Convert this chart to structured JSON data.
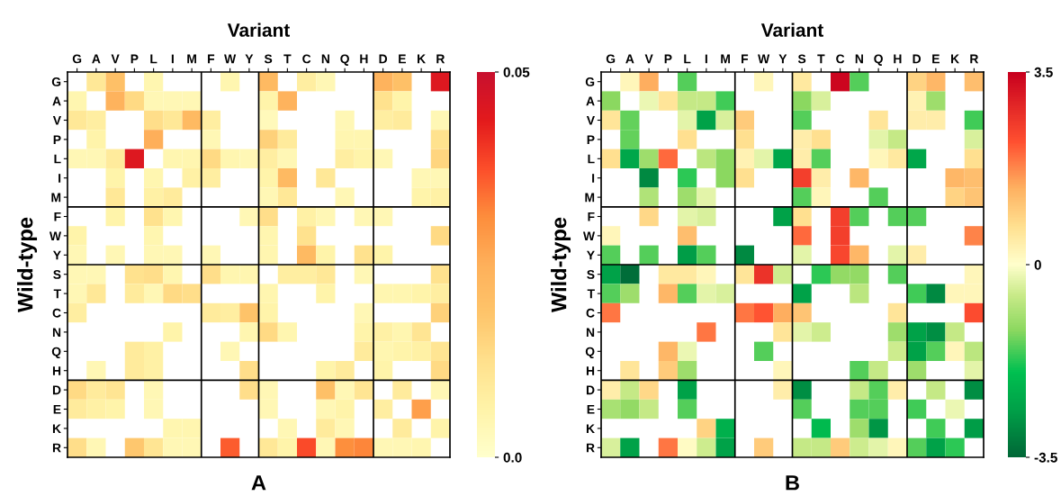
{
  "chart_data": [
    {
      "type": "heatmap",
      "xlabel": "Variant",
      "ylabel": "Wild-type",
      "annotations": [
        "A"
      ],
      "categories": [
        "G",
        "A",
        "V",
        "P",
        "L",
        "I",
        "M",
        "F",
        "W",
        "Y",
        "S",
        "T",
        "C",
        "N",
        "Q",
        "H",
        "D",
        "E",
        "K",
        "R"
      ],
      "y_categories": [
        "G",
        "A",
        "V",
        "P",
        "L",
        "I",
        "M",
        "F",
        "W",
        "Y",
        "S",
        "T",
        "C",
        "N",
        "Q",
        "H",
        "D",
        "E",
        "K",
        "R"
      ],
      "clim": [
        0,
        0.05
      ],
      "cticks": [
        {
          "value": 0,
          "label": "0.0"
        },
        0.05
      ],
      "cells": [
        [
          null,
          0.01,
          0.02,
          null,
          0.005,
          null,
          null,
          null,
          0.005,
          null,
          0.022,
          null,
          0.008,
          0.004,
          null,
          null,
          0.024,
          0.02,
          null,
          0.045
        ],
        [
          0.005,
          null,
          0.024,
          0.014,
          0.004,
          0.004,
          0.004,
          null,
          null,
          null,
          0.006,
          0.024,
          null,
          null,
          null,
          null,
          0.012,
          0.006,
          null,
          null
        ],
        [
          0.01,
          0.008,
          null,
          null,
          0.013,
          0.01,
          0.022,
          0.008,
          null,
          null,
          0.003,
          null,
          null,
          null,
          0.004,
          null,
          0.008,
          0.009,
          null,
          0.004
        ],
        [
          null,
          0.006,
          null,
          null,
          0.025,
          null,
          null,
          0.004,
          null,
          null,
          0.016,
          0.009,
          null,
          null,
          0.005,
          0.005,
          null,
          null,
          null,
          0.012
        ],
        [
          0.004,
          0.004,
          0.009,
          0.045,
          null,
          0.005,
          0.005,
          0.014,
          0.005,
          0.004,
          0.008,
          0.004,
          null,
          null,
          0.008,
          0.006,
          0.004,
          null,
          null,
          0.015
        ],
        [
          null,
          null,
          0.006,
          null,
          0.005,
          null,
          0.007,
          0.008,
          null,
          null,
          0.006,
          0.022,
          null,
          0.01,
          null,
          null,
          null,
          null,
          0.004,
          0.004
        ],
        [
          null,
          null,
          0.01,
          null,
          0.007,
          0.009,
          null,
          null,
          null,
          null,
          0.004,
          0.01,
          null,
          null,
          0.004,
          null,
          null,
          null,
          0.006,
          0.007
        ],
        [
          null,
          null,
          0.006,
          null,
          0.012,
          0.005,
          null,
          null,
          null,
          0.004,
          0.013,
          null,
          0.007,
          0.004,
          null,
          0.004,
          0.004,
          null,
          null,
          null
        ],
        [
          0.006,
          null,
          null,
          null,
          0.005,
          null,
          null,
          null,
          null,
          null,
          0.005,
          null,
          0.012,
          null,
          null,
          null,
          null,
          null,
          null,
          0.014
        ],
        [
          0.004,
          null,
          0.004,
          null,
          0.004,
          0.004,
          null,
          0.004,
          null,
          null,
          0.005,
          null,
          0.022,
          0.006,
          null,
          0.012,
          0.006,
          null,
          null,
          null
        ],
        [
          0.004,
          0.004,
          null,
          0.012,
          0.013,
          0.005,
          null,
          0.013,
          0.005,
          0.005,
          null,
          0.008,
          0.008,
          0.01,
          null,
          0.004,
          null,
          null,
          null,
          0.012
        ],
        [
          0.004,
          0.01,
          null,
          0.009,
          0.004,
          0.014,
          0.013,
          null,
          null,
          null,
          0.005,
          null,
          null,
          0.006,
          null,
          null,
          0.005,
          0.005,
          0.006,
          0.008
        ],
        [
          0.008,
          null,
          null,
          null,
          null,
          null,
          null,
          0.009,
          0.008,
          0.019,
          0.006,
          null,
          null,
          null,
          null,
          0.004,
          null,
          null,
          null,
          0.016
        ],
        [
          null,
          null,
          null,
          null,
          null,
          0.006,
          null,
          null,
          null,
          0.005,
          0.014,
          0.005,
          null,
          null,
          null,
          0.006,
          0.007,
          0.005,
          0.011,
          null
        ],
        [
          null,
          null,
          null,
          0.009,
          0.007,
          null,
          null,
          null,
          0.004,
          null,
          null,
          null,
          null,
          null,
          null,
          0.009,
          0.005,
          0.006,
          0.007,
          0.011
        ],
        [
          null,
          0.004,
          null,
          0.009,
          0.007,
          null,
          null,
          null,
          null,
          0.013,
          null,
          null,
          null,
          0.006,
          0.009,
          null,
          0.006,
          null,
          null,
          0.014
        ],
        [
          0.014,
          0.009,
          0.011,
          null,
          0.004,
          null,
          null,
          null,
          null,
          0.013,
          0.004,
          null,
          null,
          0.02,
          0.004,
          0.011,
          null,
          0.009,
          null,
          0.004
        ],
        [
          0.009,
          0.007,
          0.006,
          null,
          0.004,
          null,
          null,
          null,
          null,
          null,
          0.004,
          null,
          null,
          0.004,
          0.006,
          null,
          0.008,
          null,
          0.028,
          null
        ],
        [
          null,
          null,
          null,
          null,
          null,
          0.005,
          0.005,
          null,
          null,
          null,
          null,
          0.004,
          null,
          0.009,
          0.004,
          null,
          null,
          0.009,
          null,
          0.006
        ],
        [
          0.013,
          0.004,
          null,
          0.018,
          0.011,
          0.004,
          0.004,
          null,
          0.036,
          null,
          0.01,
          0.006,
          0.038,
          0.004,
          0.031,
          0.032,
          0.004,
          0.004,
          0.005,
          null
        ]
      ]
    },
    {
      "type": "heatmap",
      "xlabel": "Variant",
      "ylabel": "Wild-type",
      "annotations": [
        "B"
      ],
      "categories": [
        "G",
        "A",
        "V",
        "P",
        "L",
        "I",
        "M",
        "F",
        "W",
        "Y",
        "S",
        "T",
        "C",
        "N",
        "Q",
        "H",
        "D",
        "E",
        "K",
        "R"
      ],
      "y_categories": [
        "G",
        "A",
        "V",
        "P",
        "L",
        "I",
        "M",
        "F",
        "W",
        "Y",
        "S",
        "T",
        "C",
        "N",
        "Q",
        "H",
        "D",
        "E",
        "K",
        "R"
      ],
      "clim": [
        -3.5,
        3.5
      ],
      "cticks": [
        -3.5,
        0,
        3.5
      ],
      "cells": [
        [
          null,
          0.2,
          1.4,
          null,
          -1.5,
          null,
          null,
          null,
          0.2,
          null,
          0.5,
          null,
          3.4,
          -1.5,
          null,
          null,
          0.9,
          1.3,
          null,
          1.2
        ],
        [
          -1.2,
          null,
          -0.2,
          0.6,
          -0.6,
          -0.6,
          -1.6,
          null,
          null,
          null,
          -1.2,
          -0.4,
          null,
          null,
          null,
          null,
          0.3,
          -1.0,
          null,
          null
        ],
        [
          0.6,
          -1.4,
          null,
          null,
          -0.3,
          -2.6,
          -0.4,
          1.0,
          null,
          null,
          -1.5,
          null,
          null,
          null,
          0.6,
          null,
          0.4,
          0.4,
          null,
          -1.6
        ],
        [
          null,
          -1.4,
          null,
          null,
          0.7,
          null,
          null,
          0.7,
          null,
          null,
          0.4,
          0.7,
          null,
          null,
          -0.3,
          -0.6,
          null,
          null,
          null,
          -0.4
        ],
        [
          0.7,
          -2.5,
          -1.0,
          2.0,
          null,
          -0.7,
          -1.2,
          0.3,
          -0.3,
          -2.5,
          0.4,
          -1.5,
          null,
          null,
          0.2,
          0.5,
          -2.5,
          null,
          null,
          0.7
        ],
        [
          null,
          null,
          -3.0,
          null,
          -1.7,
          null,
          -1.2,
          0.7,
          null,
          null,
          2.5,
          0.4,
          null,
          1.3,
          null,
          null,
          null,
          null,
          1.3,
          1.2
        ],
        [
          null,
          null,
          -0.8,
          null,
          -1.0,
          -0.3,
          null,
          null,
          null,
          null,
          -1.5,
          0.2,
          null,
          null,
          -1.5,
          null,
          null,
          null,
          0.9,
          1.1
        ],
        [
          null,
          null,
          0.8,
          null,
          -0.3,
          -0.4,
          null,
          null,
          null,
          -2.6,
          0.7,
          null,
          2.5,
          -1.5,
          null,
          -1.5,
          -1.5,
          null,
          null,
          null
        ],
        [
          0.2,
          null,
          null,
          null,
          1.2,
          null,
          null,
          null,
          null,
          null,
          2.0,
          null,
          2.5,
          null,
          null,
          null,
          null,
          null,
          null,
          1.8
        ],
        [
          -1.5,
          null,
          -1.5,
          null,
          -2.7,
          -1.5,
          null,
          -3.0,
          null,
          null,
          -0.3,
          null,
          2.4,
          1.3,
          null,
          -0.3,
          0.4,
          null,
          null,
          null
        ],
        [
          -2.6,
          -3.4,
          null,
          0.5,
          0.5,
          0.2,
          null,
          0.6,
          2.7,
          -0.5,
          null,
          -1.7,
          -1.1,
          -1.1,
          null,
          -1.5,
          null,
          null,
          null,
          0.2
        ],
        [
          -1.5,
          -1.0,
          null,
          1.3,
          -1.5,
          -0.3,
          -0.4,
          null,
          null,
          null,
          -2.6,
          null,
          null,
          -0.7,
          null,
          null,
          -1.6,
          -3.0,
          0.2,
          0.2
        ],
        [
          1.9,
          null,
          null,
          null,
          null,
          null,
          null,
          1.9,
          2.2,
          1.4,
          1.1,
          null,
          null,
          null,
          null,
          0.6,
          null,
          null,
          null,
          2.3
        ],
        [
          null,
          null,
          null,
          null,
          null,
          1.9,
          null,
          null,
          null,
          0.6,
          -0.3,
          -0.5,
          null,
          null,
          null,
          -1.0,
          -2.6,
          -2.9,
          -0.6,
          null
        ],
        [
          null,
          null,
          null,
          1.3,
          -0.2,
          null,
          null,
          null,
          -1.5,
          null,
          null,
          null,
          null,
          null,
          null,
          -0.5,
          -2.6,
          -1.5,
          0.2,
          -0.7
        ],
        [
          null,
          0.6,
          null,
          1.0,
          -1.0,
          null,
          null,
          null,
          null,
          0.2,
          null,
          null,
          null,
          -1.5,
          -0.6,
          null,
          -1.0,
          null,
          null,
          -0.3
        ],
        [
          0.4,
          -0.6,
          0.8,
          null,
          -2.6,
          null,
          null,
          null,
          null,
          0.4,
          -2.9,
          null,
          null,
          -0.6,
          -1.5,
          0.4,
          null,
          -0.6,
          null,
          -2.9
        ],
        [
          -0.9,
          -1.1,
          -0.6,
          null,
          -1.5,
          null,
          null,
          null,
          null,
          null,
          -1.5,
          null,
          null,
          -1.5,
          -1.5,
          null,
          -1.6,
          null,
          -0.2,
          null
        ],
        [
          null,
          null,
          null,
          null,
          null,
          0.9,
          -2.3,
          null,
          null,
          null,
          null,
          -2.1,
          null,
          -1.0,
          -2.8,
          null,
          null,
          -1.6,
          null,
          -2.7
        ],
        [
          -0.4,
          -2.6,
          null,
          1.9,
          0.1,
          -0.5,
          -2.6,
          null,
          1.0,
          null,
          -0.6,
          -0.6,
          1.0,
          -0.5,
          -0.3,
          0.2,
          -1.5,
          -2.6,
          -1.7,
          null
        ]
      ]
    }
  ]
}
